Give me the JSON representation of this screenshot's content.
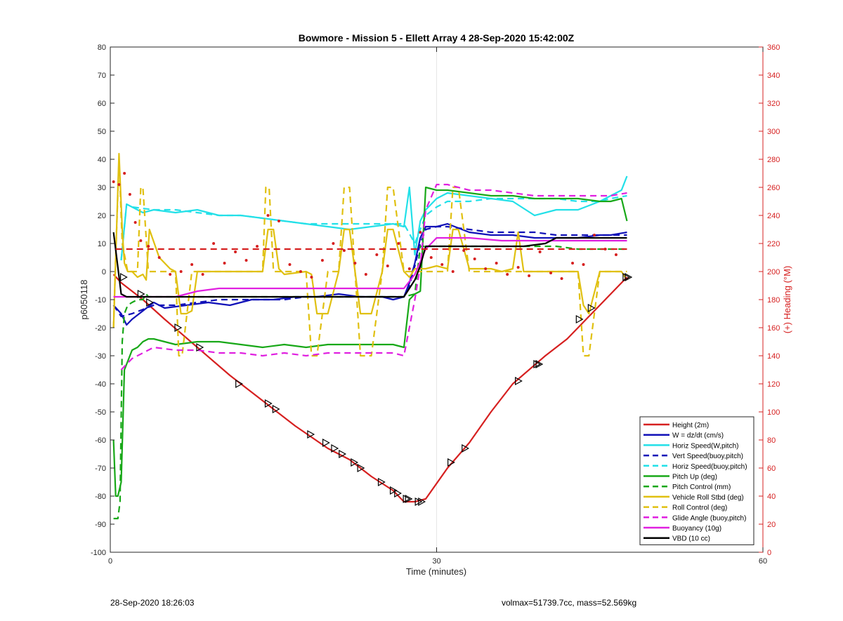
{
  "chart_data": {
    "type": "line",
    "title": "Bowmore - Mission 5 - Ellett Array 4 28-Sep-2020 15:42:00Z",
    "xlabel": "Time (minutes)",
    "ylabel": "p6050118",
    "y2label": "(+) Heading (°M)",
    "xlim": [
      0,
      60
    ],
    "ylim": [
      -100,
      80
    ],
    "y2lim": [
      0,
      360
    ],
    "xticks": [
      "0",
      "30",
      "60"
    ],
    "yticks": [
      "80",
      "70",
      "60",
      "50",
      "40",
      "30",
      "20",
      "10",
      "0",
      "-10",
      "-20",
      "-30",
      "-40",
      "-50",
      "-60",
      "-70",
      "-80",
      "-90",
      "-100"
    ],
    "y2ticks": [
      "360",
      "340",
      "320",
      "300",
      "280",
      "260",
      "240",
      "220",
      "200",
      "180",
      "160",
      "140",
      "120",
      "100",
      "80",
      "60",
      "40",
      "20",
      "0"
    ],
    "grid": "x",
    "legend_position": "bottom-right",
    "series": [
      {
        "name": "Height (2m)",
        "color": "#d62020",
        "style": "solid",
        "x": [
          0.3,
          1,
          2,
          3,
          5,
          8,
          11,
          14,
          17,
          20,
          22,
          24,
          26,
          27,
          28,
          29,
          31,
          33,
          35,
          37,
          40,
          42,
          44,
          45,
          47.5
        ],
        "y": [
          -1,
          -4,
          -7,
          -10,
          -17,
          -27,
          -37,
          -46,
          -55,
          -63,
          -67,
          -73,
          -78,
          -82,
          -82,
          -81,
          -70,
          -61,
          -50,
          -40,
          -30,
          -24,
          -16,
          -12,
          -2
        ]
      },
      {
        "name": "W = dz/dt (cm/s)",
        "color": "#1010b8",
        "style": "solid",
        "x": [
          0.3,
          1,
          1.5,
          2,
          3,
          4,
          5,
          7,
          9,
          11,
          13,
          15,
          17,
          19,
          21,
          23,
          25,
          26,
          27,
          27.5,
          28,
          28.5,
          29,
          30,
          31,
          33,
          35,
          37,
          39,
          41,
          43,
          45,
          46,
          47.5
        ],
        "y": [
          -12,
          -15,
          -19,
          -17,
          -14,
          -11,
          -13,
          -12,
          -11,
          -12,
          -10,
          -10,
          -9,
          -9,
          -8,
          -9,
          -9,
          -10,
          -9,
          -4,
          3,
          12,
          16,
          16,
          17,
          14,
          13,
          13,
          12,
          12,
          12,
          13,
          13,
          14
        ]
      },
      {
        "name": "Horiz Speed(W,pitch)",
        "color": "#22e0e8",
        "style": "solid",
        "x": [
          1,
          1.5,
          2,
          3,
          4,
          6,
          8,
          10,
          12,
          14,
          16,
          18,
          20,
          22,
          24,
          26,
          27,
          27.5,
          28,
          28.5,
          29,
          30,
          31,
          33,
          35,
          37,
          39,
          41,
          43,
          45,
          46,
          47,
          47.5
        ],
        "y": [
          4,
          24,
          23,
          21,
          22,
          21,
          22,
          20,
          20,
          19,
          18,
          17,
          16,
          15,
          16,
          17,
          16,
          30,
          6,
          18,
          22,
          26,
          28,
          27,
          26,
          25,
          20,
          22,
          22,
          25,
          27,
          29,
          34
        ]
      },
      {
        "name": "Vert Speed(buoy,pitch)",
        "color": "#1010b8",
        "style": "dashed",
        "x": [
          0.3,
          1,
          2,
          4,
          6,
          8,
          10,
          12,
          14,
          16,
          18,
          20,
          22,
          24,
          26,
          27,
          27.5,
          28,
          28.5,
          29,
          30,
          31,
          33,
          35,
          37,
          39,
          41,
          43,
          45,
          46,
          47.5
        ],
        "y": [
          -12,
          -16,
          -15,
          -12,
          -12,
          -11,
          -10,
          -10,
          -10,
          -10,
          -9,
          -9,
          -9,
          -9,
          -9,
          -9,
          -5,
          2,
          10,
          15,
          16,
          16,
          15,
          14,
          14,
          14,
          13,
          13,
          13,
          13,
          13
        ]
      },
      {
        "name": "Horiz Speed(buoy,pitch)",
        "color": "#22e0e8",
        "style": "dashed",
        "x": [
          1,
          1.5,
          2,
          4,
          6,
          8,
          10,
          12,
          14,
          16,
          18,
          20,
          22,
          24,
          26,
          27,
          28,
          29,
          30,
          31,
          33,
          35,
          37,
          39,
          41,
          43,
          45,
          46,
          47.5
        ],
        "y": [
          4,
          24,
          23,
          22,
          22,
          21,
          20,
          20,
          19,
          18,
          17,
          17,
          17,
          17,
          17,
          17,
          10,
          20,
          23,
          25,
          25,
          26,
          26,
          26,
          26,
          25,
          25,
          26,
          27
        ]
      },
      {
        "name": "Pitch Up (deg)",
        "color": "#18a818",
        "style": "solid",
        "x": [
          0.3,
          0.5,
          0.7,
          1,
          1.3,
          1.6,
          2,
          2.5,
          3,
          3.5,
          4,
          6,
          8,
          10,
          12,
          14,
          16,
          18,
          20,
          22,
          24,
          26,
          27,
          27.5,
          28,
          28.5,
          29,
          30,
          31,
          33,
          35,
          37,
          39,
          41,
          43,
          45,
          46,
          47,
          47.5
        ],
        "y": [
          -60,
          -80,
          -80,
          -75,
          -35,
          -32,
          -28,
          -27,
          -25,
          -24,
          -24,
          -26,
          -25,
          -25,
          -26,
          -27,
          -26,
          -27,
          -26,
          -26,
          -26,
          -26,
          -27,
          -10,
          -8,
          -7,
          30,
          29,
          29,
          28,
          27,
          27,
          26,
          26,
          26,
          25,
          25,
          26,
          18
        ]
      },
      {
        "name": "Pitch Control (mm)",
        "color": "#18a818",
        "style": "dashed",
        "x": [
          0.3,
          0.7,
          0.9,
          1.1,
          1.3,
          1.6,
          2,
          2.5,
          3,
          3.3,
          3.5,
          5,
          8,
          10,
          12,
          14,
          16,
          18,
          20,
          22,
          24,
          26,
          27,
          28,
          28.5,
          29,
          30,
          33,
          35,
          37,
          39,
          41,
          43,
          45,
          47.5
        ],
        "y": [
          -88,
          -88,
          -82,
          -25,
          -15,
          -12,
          -11,
          -10,
          -10,
          -8,
          -9,
          -9,
          -9,
          -9,
          -9,
          -9,
          -9,
          -9,
          -9,
          -9,
          -9,
          -9,
          -9,
          -8,
          9,
          9,
          9,
          9,
          9,
          9,
          9,
          9,
          8,
          8,
          8
        ]
      },
      {
        "name": "Vehicle Roll Stbd (deg)",
        "color": "#e0c010",
        "style": "solid",
        "x": [
          0.3,
          0.5,
          0.8,
          1.1,
          1.3,
          1.6,
          2,
          2.5,
          3,
          3.3,
          3.6,
          4.5,
          5.5,
          6,
          6.5,
          7,
          7.5,
          8,
          12,
          14,
          14.5,
          15,
          15.5,
          16,
          18,
          18.5,
          19,
          20,
          21,
          21.5,
          22,
          22.5,
          23,
          24,
          25,
          25.5,
          26,
          27,
          27.5,
          28,
          29,
          30,
          31,
          31.5,
          32,
          33,
          34,
          35,
          36,
          37,
          37.5,
          38,
          39,
          40,
          41,
          42,
          43,
          43.5,
          44,
          45,
          46,
          47,
          47.5
        ],
        "y": [
          -20,
          5,
          42,
          15,
          3,
          0,
          0,
          -2,
          -1,
          -3,
          15,
          5,
          1,
          0,
          -15,
          -15,
          -14,
          0,
          0,
          0,
          15,
          15,
          1,
          -1,
          0,
          -1,
          -15,
          -15,
          0,
          15,
          15,
          0,
          -15,
          -15,
          0,
          15,
          15,
          0,
          -2,
          1,
          1,
          2,
          1,
          15,
          15,
          1,
          1,
          1,
          0,
          1,
          14,
          0,
          0,
          0,
          0,
          0,
          0,
          -12,
          -15,
          0,
          0,
          0,
          -3
        ]
      },
      {
        "name": "Roll Control (deg)",
        "color": "#e0c010",
        "style": "dashed",
        "x": [
          0.3,
          0.5,
          0.8,
          1.1,
          1.6,
          2.5,
          2.8,
          3,
          3.5,
          5,
          6,
          6.3,
          6.6,
          7.5,
          8,
          12,
          14,
          14.3,
          14.6,
          15,
          15.5,
          18,
          18.5,
          19,
          20,
          21,
          21.5,
          22,
          22.5,
          23,
          24,
          25,
          25.5,
          26,
          27,
          28,
          30,
          31,
          31.5,
          32,
          33,
          37,
          37.5,
          38,
          41,
          43,
          43.5,
          44,
          45,
          47.5
        ],
        "y": [
          -20,
          5,
          40,
          10,
          0,
          0,
          30,
          30,
          0,
          0,
          0,
          -30,
          -30,
          0,
          0,
          0,
          0,
          30,
          30,
          0,
          0,
          0,
          -30,
          -30,
          0,
          0,
          30,
          30,
          0,
          -30,
          -30,
          0,
          30,
          30,
          0,
          0,
          0,
          0,
          30,
          30,
          0,
          0,
          0,
          0,
          0,
          0,
          -30,
          -30,
          0,
          0
        ]
      },
      {
        "name": "Glide Angle (buoy,pitch)",
        "color": "#e020e0",
        "style": "dashed",
        "x": [
          1,
          1.5,
          2,
          3,
          4,
          6,
          8,
          10,
          12,
          14,
          16,
          18,
          20,
          22,
          24,
          26,
          27,
          28,
          28.5,
          29,
          30,
          31,
          33,
          35,
          37,
          39,
          41,
          43,
          45,
          46,
          47.5
        ],
        "y": [
          -35,
          -33,
          -31,
          -29,
          -27,
          -28,
          -28,
          -29,
          -29,
          -30,
          -29,
          -30,
          -29,
          -29,
          -29,
          -29,
          -30,
          -10,
          2,
          22,
          31,
          31,
          29,
          29,
          28,
          27,
          27,
          27,
          27,
          27,
          28
        ]
      },
      {
        "name": "Buoyancy (10g)",
        "color": "#e020e0",
        "style": "solid",
        "x": [
          0.3,
          1,
          2,
          4,
          6,
          8,
          10,
          14,
          18,
          22,
          26,
          27,
          28,
          29,
          30,
          33,
          36,
          39,
          42,
          45,
          47.5
        ],
        "y": [
          -9,
          -9,
          -9,
          -9,
          -9,
          -7,
          -6,
          -6,
          -6,
          -6,
          -6,
          -6,
          -1,
          8,
          12,
          12,
          11,
          11,
          11,
          11,
          11
        ]
      },
      {
        "name": "VBD (10 cc)",
        "color": "#000000",
        "style": "solid",
        "x": [
          0.3,
          1,
          1.5,
          4,
          8,
          12,
          16,
          20,
          24,
          27,
          28,
          28.5,
          29,
          33,
          38,
          40,
          41,
          47.5
        ],
        "y": [
          14,
          -8,
          -9,
          -9,
          -9,
          -9,
          -9,
          -9,
          -9,
          -9,
          -3,
          2,
          9,
          9,
          9,
          10,
          12,
          12
        ]
      },
      {
        "name": "",
        "color": "#d62020",
        "style": "dotted",
        "axis": "right",
        "x": [
          0.3,
          0.8,
          1.3,
          1.8,
          2.3,
          2.8,
          3.5,
          4.5,
          5.5,
          6.5,
          7.5,
          8.5,
          9.5,
          10.5,
          11.5,
          12.5,
          13.5,
          14.5,
          15.5,
          16.5,
          17.5,
          18.5,
          19.5,
          20.5,
          21.5,
          22.5,
          23.5,
          24.5,
          25.5,
          26.5,
          27.5,
          28.5,
          29.5,
          30.5,
          31.5,
          32.5,
          33.5,
          34.5,
          35.5,
          36.5,
          37.5,
          38.5,
          39.5,
          40.5,
          41.5,
          42.5,
          43.5,
          44.5,
          45.5,
          46.5,
          47.5
        ],
        "y": [
          264,
          262,
          270,
          255,
          235,
          222,
          218,
          210,
          198,
          200,
          205,
          198,
          220,
          206,
          214,
          208,
          218,
          240,
          236,
          205,
          200,
          196,
          208,
          220,
          215,
          206,
          198,
          212,
          204,
          220,
          202,
          228,
          210,
          205,
          200,
          215,
          209,
          202,
          206,
          198,
          203,
          197,
          214,
          199,
          195,
          206,
          205,
          226,
          216,
          212,
          195
        ]
      },
      {
        "name": "",
        "color": "#d62020",
        "style": "dashed",
        "axis": "right",
        "x": [
          0.5,
          47.5
        ],
        "y": [
          216,
          216
        ]
      }
    ],
    "markers": {
      "symbol": "triangle",
      "x": [
        1.2,
        2.8,
        3.6,
        6.2,
        8.2,
        11.8,
        14.5,
        15.2,
        18.4,
        19.8,
        20.6,
        21.3,
        22.4,
        23.0,
        24.9,
        26.0,
        26.4,
        27.2,
        27.4,
        28.3,
        28.6,
        31.3,
        32.6,
        37.5,
        39.2,
        39.4,
        43.1,
        44.2,
        47.4,
        47.6
      ],
      "y": [
        -2,
        -8,
        -11,
        -20,
        -27,
        -40,
        -47,
        -49,
        -58,
        -61,
        -63,
        -65,
        -68,
        -70,
        -75,
        -78,
        -79,
        -81,
        -81,
        -82,
        -82,
        -68,
        -63,
        -39,
        -33,
        -33,
        -17,
        -13,
        -2,
        -2
      ]
    },
    "legend_entries": [
      "Height (2m)",
      "W = dz/dt (cm/s)",
      "Horiz Speed(W,pitch)",
      "Vert Speed(buoy,pitch)",
      "Horiz Speed(buoy,pitch)",
      "Pitch Up (deg)",
      "Pitch Control (mm)",
      "Vehicle Roll Stbd (deg)",
      "Roll Control (deg)",
      "Glide Angle (buoy,pitch)",
      "Buoyancy (10g)",
      "VBD (10 cc)"
    ]
  },
  "footer": {
    "left": "28-Sep-2020 18:26:03",
    "right": "volmax=51739.7cc, mass=52.569kg"
  }
}
